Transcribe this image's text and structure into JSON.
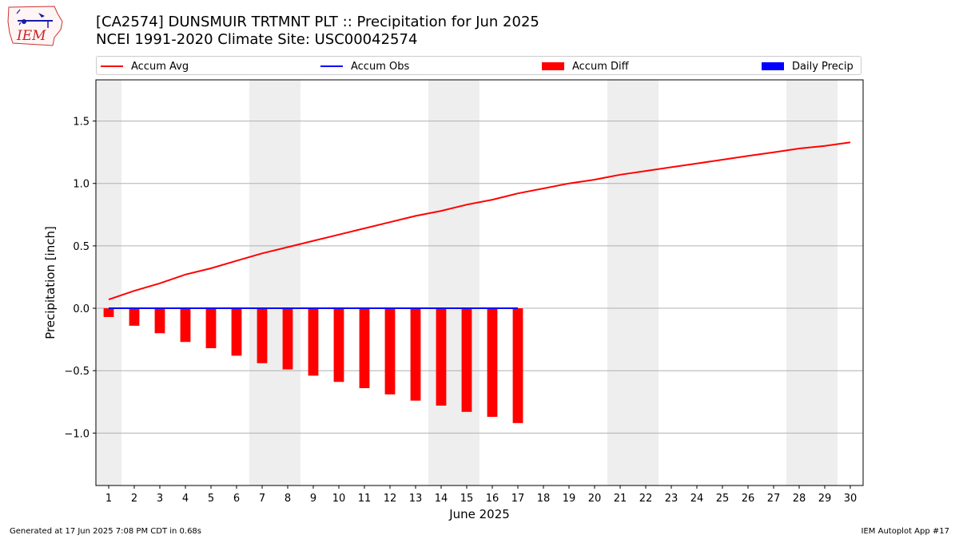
{
  "header": {
    "logo_text": "IEM",
    "title_line1": "[CA2574] DUNSMUIR TRTMNT PLT :: Precipitation for Jun 2025",
    "title_line2": "NCEI 1991-2020 Climate Site: USC00042574"
  },
  "footer": {
    "generated": "Generated at 17 Jun 2025 7:08 PM CDT in 0.68s",
    "app": "IEM Autoplot App #17"
  },
  "chart_data": {
    "type": "bar",
    "title": "[CA2574] DUNSMUIR TRTMNT PLT :: Precipitation for Jun 2025",
    "subtitle": "NCEI 1991-2020 Climate Site: USC00042574",
    "xlabel": "June 2025",
    "ylabel": "Precipitation [inch]",
    "xlim": [
      0.5,
      30.5
    ],
    "ylim": [
      -1.42,
      1.83
    ],
    "x_ticks": [
      1,
      2,
      3,
      4,
      5,
      6,
      7,
      8,
      9,
      10,
      11,
      12,
      13,
      14,
      15,
      16,
      17,
      18,
      19,
      20,
      21,
      22,
      23,
      24,
      25,
      26,
      27,
      28,
      29,
      30
    ],
    "y_ticks": [
      {
        "value": 1.5,
        "label": "1.5"
      },
      {
        "value": 1.0,
        "label": "1.0"
      },
      {
        "value": 0.5,
        "label": "0.5"
      },
      {
        "value": 0.0,
        "label": "0.0"
      },
      {
        "value": -0.5,
        "label": "−0.5"
      },
      {
        "value": -1.0,
        "label": "−1.0"
      }
    ],
    "grid": "horizontal",
    "legend_position": "top",
    "weekend_shading": [
      [
        0.5,
        1.5
      ],
      [
        6.5,
        8.5
      ],
      [
        13.5,
        15.5
      ],
      [
        20.5,
        22.5
      ],
      [
        27.5,
        29.5
      ]
    ],
    "series": [
      {
        "name": "Accum Avg",
        "kind": "line",
        "color": "#ff0000",
        "x": [
          1,
          2,
          3,
          4,
          5,
          6,
          7,
          8,
          9,
          10,
          11,
          12,
          13,
          14,
          15,
          16,
          17,
          18,
          19,
          20,
          21,
          22,
          23,
          24,
          25,
          26,
          27,
          28,
          29,
          30
        ],
        "values": [
          0.07,
          0.14,
          0.2,
          0.27,
          0.32,
          0.38,
          0.44,
          0.49,
          0.54,
          0.59,
          0.64,
          0.69,
          0.74,
          0.78,
          0.83,
          0.87,
          0.92,
          0.96,
          1.0,
          1.03,
          1.07,
          1.1,
          1.13,
          1.16,
          1.19,
          1.22,
          1.25,
          1.28,
          1.3,
          1.33
        ]
      },
      {
        "name": "Accum Obs",
        "kind": "line",
        "color": "#0000ff",
        "x": [
          1,
          2,
          3,
          4,
          5,
          6,
          7,
          8,
          9,
          10,
          11,
          12,
          13,
          14,
          15,
          16,
          17
        ],
        "values": [
          0,
          0,
          0,
          0,
          0,
          0,
          0,
          0,
          0,
          0,
          0,
          0,
          0,
          0,
          0,
          0,
          0
        ]
      },
      {
        "name": "Accum Diff",
        "kind": "bar",
        "color": "#ff0000",
        "x": [
          1,
          2,
          3,
          4,
          5,
          6,
          7,
          8,
          9,
          10,
          11,
          12,
          13,
          14,
          15,
          16,
          17
        ],
        "values": [
          -0.07,
          -0.14,
          -0.2,
          -0.27,
          -0.32,
          -0.38,
          -0.44,
          -0.49,
          -0.54,
          -0.59,
          -0.64,
          -0.69,
          -0.74,
          -0.78,
          -0.83,
          -0.87,
          -0.92
        ]
      },
      {
        "name": "Daily Precip",
        "kind": "bar",
        "color": "#0000ff",
        "x": [
          1,
          2,
          3,
          4,
          5,
          6,
          7,
          8,
          9,
          10,
          11,
          12,
          13,
          14,
          15,
          16,
          17
        ],
        "values": [
          0,
          0,
          0,
          0,
          0,
          0,
          0,
          0,
          0,
          0,
          0,
          0,
          0,
          0,
          0,
          0,
          0
        ]
      }
    ]
  }
}
